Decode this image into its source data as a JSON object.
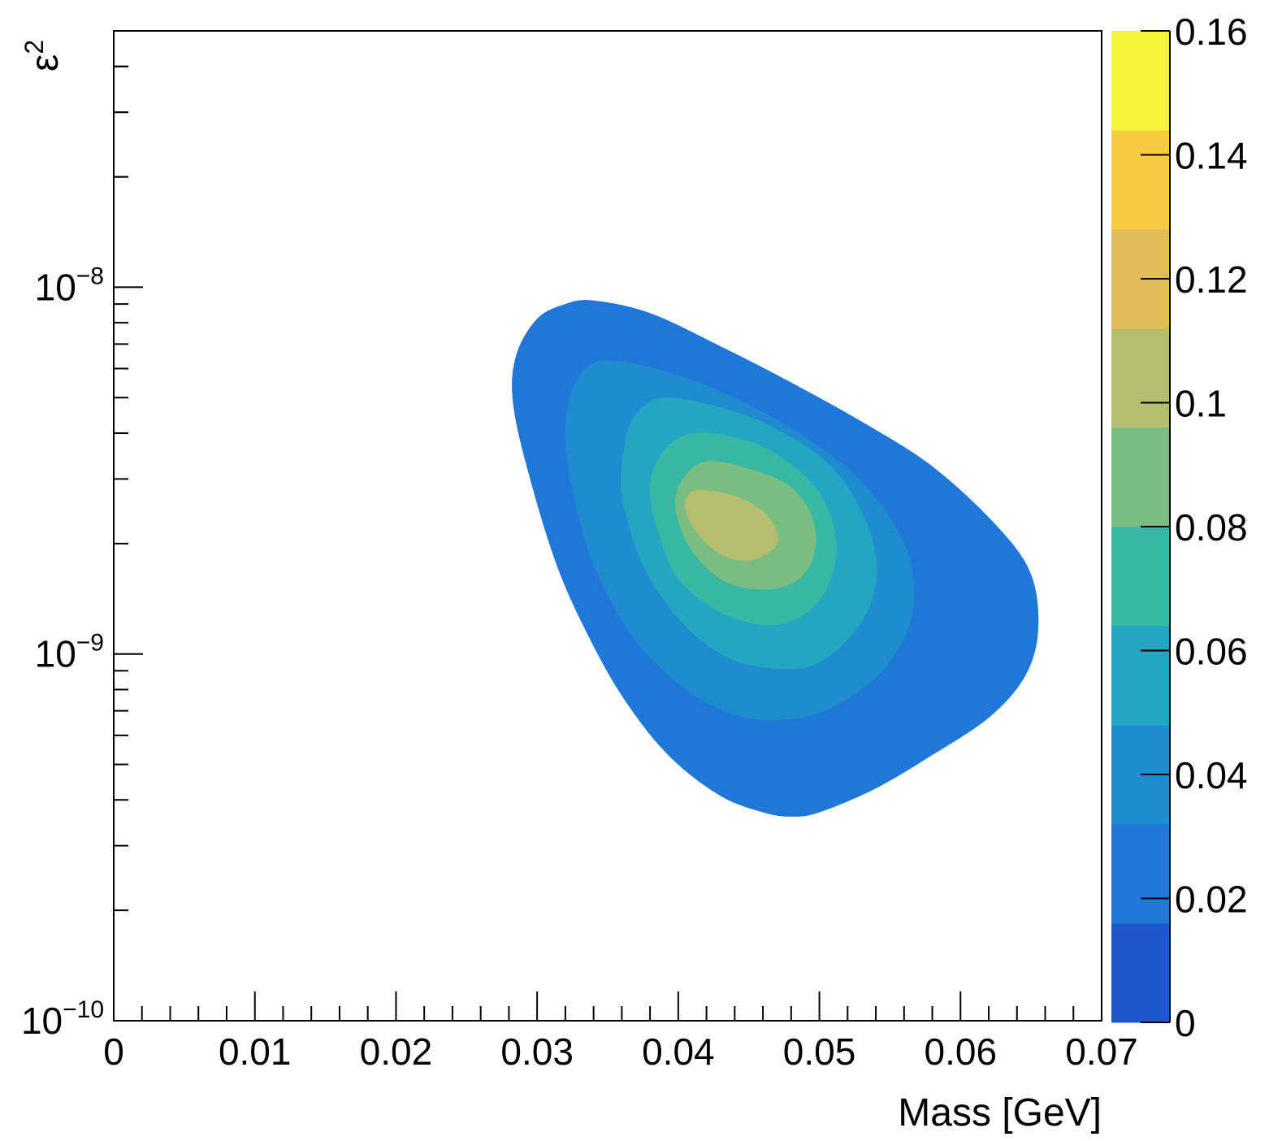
{
  "chart_data": {
    "type": "heatmap",
    "title": "",
    "xlabel": "Mass [GeV]",
    "ylabel": "ε",
    "ylabel_superscript": "2",
    "x_range": [
      0,
      0.07
    ],
    "y_range": [
      1e-10,
      5e-08
    ],
    "y_scale": "log",
    "grid": false,
    "x_ticks": [
      {
        "value": 0,
        "label": "0"
      },
      {
        "value": 0.01,
        "label": "0.01"
      },
      {
        "value": 0.02,
        "label": "0.02"
      },
      {
        "value": 0.03,
        "label": "0.03"
      },
      {
        "value": 0.04,
        "label": "0.04"
      },
      {
        "value": 0.05,
        "label": "0.05"
      },
      {
        "value": 0.06,
        "label": "0.06"
      },
      {
        "value": 0.07,
        "label": "0.07"
      }
    ],
    "y_ticks": [
      {
        "value": 1e-10,
        "base": "10",
        "exp": "−10"
      },
      {
        "value": 1e-09,
        "base": "10",
        "exp": "−9"
      },
      {
        "value": 1e-08,
        "base": "10",
        "exp": "−8"
      }
    ],
    "colorbar": {
      "range": [
        0,
        0.16
      ],
      "levels": [
        0,
        0.016,
        0.032,
        0.048,
        0.064,
        0.08,
        0.096,
        0.112,
        0.128,
        0.144,
        0.16
      ],
      "colors": [
        "#1f57cc",
        "#1f78d7",
        "#1f8ccf",
        "#22a6c2",
        "#38b7a4",
        "#79bd82",
        "#b5bd6e",
        "#e1bd58",
        "#f8cc41",
        "#f5f53a"
      ],
      "ticks": [
        {
          "value": 0,
          "label": "0"
        },
        {
          "value": 0.02,
          "label": "0.02"
        },
        {
          "value": 0.04,
          "label": "0.04"
        },
        {
          "value": 0.06,
          "label": "0.06"
        },
        {
          "value": 0.08,
          "label": "0.08"
        },
        {
          "value": 0.1,
          "label": "0.1"
        },
        {
          "value": 0.12,
          "label": "0.12"
        },
        {
          "value": 0.14,
          "label": "0.14"
        },
        {
          "value": 0.16,
          "label": "0.16"
        }
      ]
    },
    "peak": {
      "mass": 0.0435,
      "eps2": 2.3e-09,
      "value": 0.1
    },
    "contours": [
      {
        "level": 0.016,
        "color": "#1f78d7",
        "points": [
          [
            0.034,
            9.2e-09
          ],
          [
            0.038,
            8.5e-09
          ],
          [
            0.043,
            6.9e-09
          ],
          [
            0.048,
            5.5e-09
          ],
          [
            0.053,
            4.3e-09
          ],
          [
            0.058,
            3.25e-09
          ],
          [
            0.0625,
            2.25e-09
          ],
          [
            0.065,
            1.65e-09
          ],
          [
            0.0655,
            1.15e-09
          ],
          [
            0.0645,
            8.6e-10
          ],
          [
            0.062,
            6.7e-10
          ],
          [
            0.058,
            5.3e-10
          ],
          [
            0.054,
            4.3e-10
          ],
          [
            0.05,
            3.7e-10
          ],
          [
            0.048,
            3.6e-10
          ],
          [
            0.046,
            3.7e-10
          ],
          [
            0.043,
            4.1e-10
          ],
          [
            0.0395,
            5.2e-10
          ],
          [
            0.0365,
            7.2e-10
          ],
          [
            0.034,
            1.05e-09
          ],
          [
            0.0315,
            1.7e-09
          ],
          [
            0.0295,
            3e-09
          ],
          [
            0.0283,
            4.8e-09
          ],
          [
            0.0285,
            6.5e-09
          ],
          [
            0.03,
            8.2e-09
          ],
          [
            0.032,
            9e-09
          ]
        ]
      },
      {
        "level": 0.032,
        "color": "#1f8ccf",
        "points": [
          [
            0.0345,
            6.3e-09
          ],
          [
            0.039,
            5.9e-09
          ],
          [
            0.044,
            5e-09
          ],
          [
            0.049,
            3.9e-09
          ],
          [
            0.053,
            2.95e-09
          ],
          [
            0.056,
            2e-09
          ],
          [
            0.0567,
            1.4e-09
          ],
          [
            0.0557,
            1.05e-09
          ],
          [
            0.0535,
            8.3e-10
          ],
          [
            0.05,
            6.9e-10
          ],
          [
            0.046,
            6.6e-10
          ],
          [
            0.0425,
            7.2e-10
          ],
          [
            0.0395,
            8.6e-10
          ],
          [
            0.0365,
            1.15e-09
          ],
          [
            0.034,
            1.75e-09
          ],
          [
            0.0325,
            2.8e-09
          ],
          [
            0.032,
            4e-09
          ],
          [
            0.0325,
            5.3e-09
          ]
        ]
      },
      {
        "level": 0.048,
        "color": "#22a6c2",
        "points": [
          [
            0.039,
            5e-09
          ],
          [
            0.043,
            4.7e-09
          ],
          [
            0.047,
            4.1e-09
          ],
          [
            0.051,
            3.2e-09
          ],
          [
            0.0535,
            2.2e-09
          ],
          [
            0.054,
            1.55e-09
          ],
          [
            0.0525,
            1.15e-09
          ],
          [
            0.0495,
            9.3e-10
          ],
          [
            0.046,
            9.2e-10
          ],
          [
            0.043,
            1e-09
          ],
          [
            0.04,
            1.25e-09
          ],
          [
            0.0375,
            1.75e-09
          ],
          [
            0.036,
            2.7e-09
          ],
          [
            0.0362,
            3.7e-09
          ],
          [
            0.037,
            4.5e-09
          ]
        ]
      },
      {
        "level": 0.064,
        "color": "#38b7a4",
        "points": [
          [
            0.041,
            4e-09
          ],
          [
            0.044,
            3.9e-09
          ],
          [
            0.047,
            3.5e-09
          ],
          [
            0.05,
            2.75e-09
          ],
          [
            0.0512,
            2e-09
          ],
          [
            0.0505,
            1.5e-09
          ],
          [
            0.0485,
            1.25e-09
          ],
          [
            0.046,
            1.2e-09
          ],
          [
            0.043,
            1.3e-09
          ],
          [
            0.04,
            1.6e-09
          ],
          [
            0.0385,
            2.2e-09
          ],
          [
            0.038,
            2.9e-09
          ],
          [
            0.039,
            3.6e-09
          ]
        ]
      },
      {
        "level": 0.08,
        "color": "#79bd82",
        "points": [
          [
            0.042,
            3.35e-09
          ],
          [
            0.045,
            3.2e-09
          ],
          [
            0.048,
            2.85e-09
          ],
          [
            0.0496,
            2.3e-09
          ],
          [
            0.0495,
            1.8e-09
          ],
          [
            0.048,
            1.55e-09
          ],
          [
            0.0455,
            1.5e-09
          ],
          [
            0.043,
            1.6e-09
          ],
          [
            0.0408,
            1.95e-09
          ],
          [
            0.0398,
            2.5e-09
          ],
          [
            0.0403,
            3e-09
          ]
        ]
      },
      {
        "level": 0.096,
        "color": "#b5bd6e",
        "points": [
          [
            0.0415,
            2.8e-09
          ],
          [
            0.044,
            2.7e-09
          ],
          [
            0.046,
            2.45e-09
          ],
          [
            0.047,
            2.15e-09
          ],
          [
            0.0468,
            1.95e-09
          ],
          [
            0.0452,
            1.8e-09
          ],
          [
            0.0432,
            1.85e-09
          ],
          [
            0.0415,
            2.1e-09
          ],
          [
            0.0405,
            2.45e-09
          ],
          [
            0.0407,
            2.7e-09
          ]
        ]
      }
    ]
  }
}
